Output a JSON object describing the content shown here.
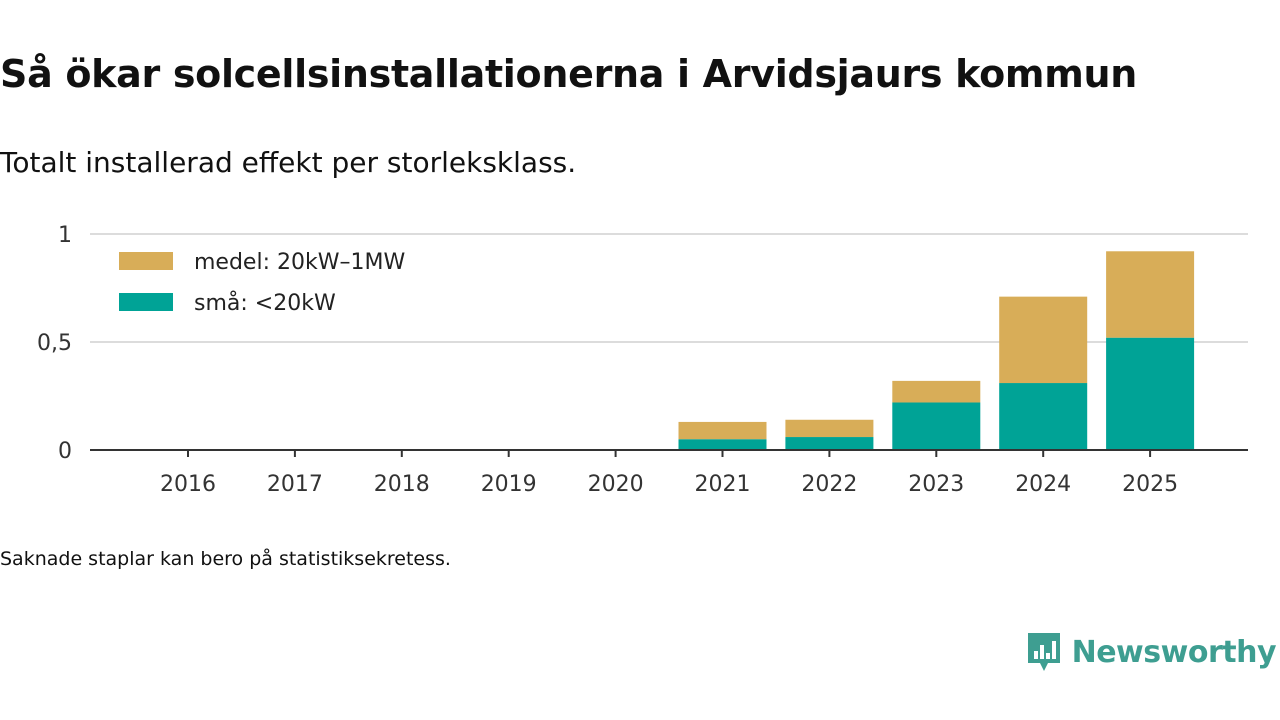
{
  "title": "Så ökar solcellsinstallationerna i Arvidsjaurs kommun",
  "subtitle": "Totalt installerad effekt per storleksklass.",
  "footnote": "Saknade staplar kan bero på statistiksekretess.",
  "brand": {
    "name": "Newsworthy",
    "color": "#3e9e91"
  },
  "chart_data": {
    "type": "bar",
    "stacked": true,
    "categories": [
      "2016",
      "2017",
      "2018",
      "2019",
      "2020",
      "2021",
      "2022",
      "2023",
      "2024",
      "2025"
    ],
    "series": [
      {
        "name": "små: <20kW",
        "color": "#00a396",
        "values": [
          0,
          0,
          0,
          0,
          0,
          0.05,
          0.06,
          0.22,
          0.31,
          0.52
        ]
      },
      {
        "name": "medel: 20kW–1MW",
        "color": "#d8ad58",
        "values": [
          0,
          0,
          0,
          0,
          0,
          0.08,
          0.08,
          0.1,
          0.4,
          0.4
        ]
      }
    ],
    "legend": [
      {
        "name": "medel: 20kW–1MW",
        "color": "#d8ad58"
      },
      {
        "name": "små: <20kW",
        "color": "#00a396"
      }
    ],
    "yticks": [
      0,
      0.5,
      1
    ],
    "ytick_labels": [
      "0",
      "0,5",
      "1"
    ],
    "ylim": [
      0,
      1
    ],
    "xlabel": "",
    "ylabel": "",
    "grid": true,
    "legend_position": "top-left"
  }
}
